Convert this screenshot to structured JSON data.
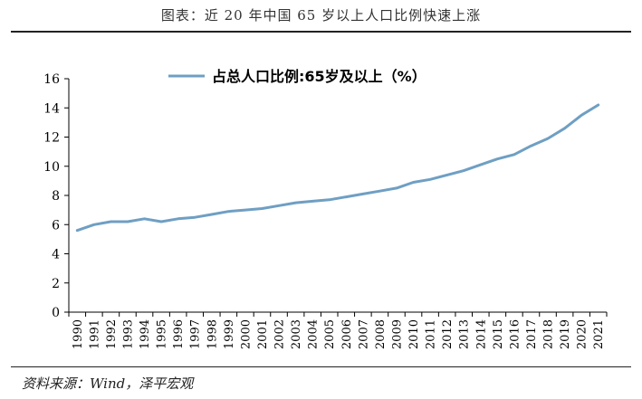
{
  "figure": {
    "title": "图表：近 20 年中国 65 岁以上人口比例快速上涨",
    "source": "资料来源：Wind，泽平宏观"
  },
  "colors": {
    "line": "#6f9fc3",
    "axis": "#000000"
  },
  "chart_data": {
    "type": "line",
    "title": "",
    "xlabel": "",
    "ylabel": "",
    "ylim": [
      0,
      16
    ],
    "yticks": [
      "0",
      "2",
      "4",
      "6",
      "8",
      "10",
      "12",
      "14",
      "16"
    ],
    "grid": false,
    "legend_position": "top-center",
    "x": [
      "1990",
      "1991",
      "1992",
      "1993",
      "1994",
      "1995",
      "1996",
      "1997",
      "1998",
      "1999",
      "2000",
      "2001",
      "2002",
      "2003",
      "2004",
      "2005",
      "2006",
      "2007",
      "2008",
      "2009",
      "2010",
      "2011",
      "2012",
      "2013",
      "2014",
      "2015",
      "2016",
      "2017",
      "2018",
      "2019",
      "2020",
      "2021"
    ],
    "series": [
      {
        "name": "占总人口比例:65岁及以上（%）",
        "values": [
          5.6,
          6.0,
          6.2,
          6.2,
          6.4,
          6.2,
          6.4,
          6.5,
          6.7,
          6.9,
          7.0,
          7.1,
          7.3,
          7.5,
          7.6,
          7.7,
          7.9,
          8.1,
          8.3,
          8.5,
          8.9,
          9.1,
          9.4,
          9.7,
          10.1,
          10.5,
          10.8,
          11.4,
          11.9,
          12.6,
          13.5,
          14.2
        ]
      }
    ]
  }
}
